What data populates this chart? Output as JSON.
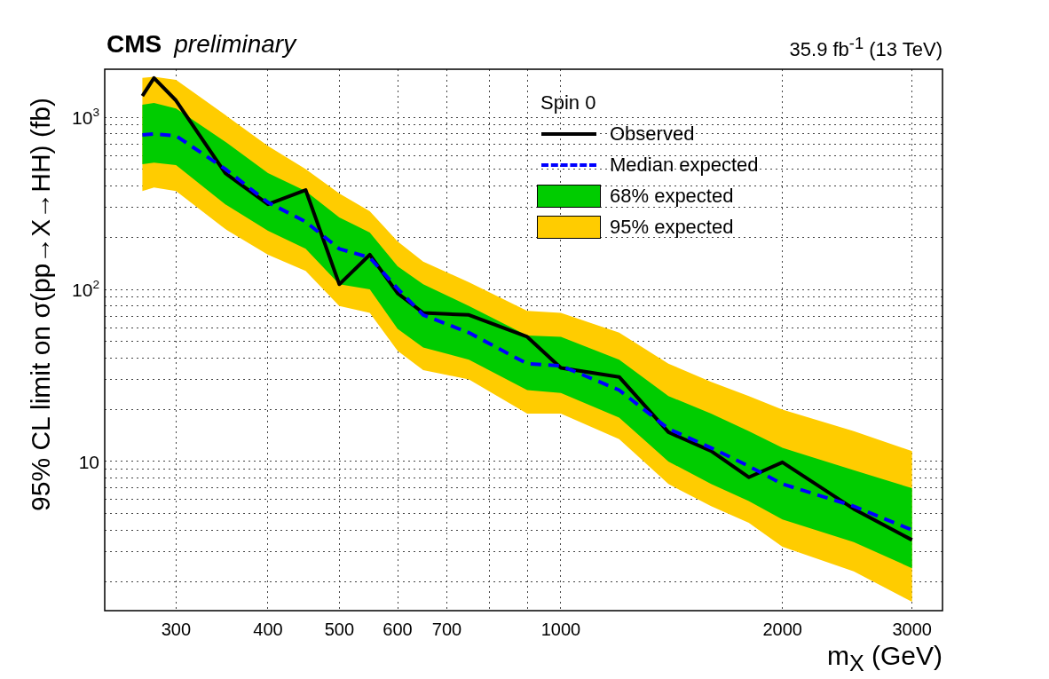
{
  "chart_data": {
    "type": "line",
    "title": "CMS",
    "subtitle": "preliminary",
    "xlabel": "m$_{X}$ (GeV)",
    "ylabel": "95% CL limit on σ(pp→X→HH) (fb)",
    "legend_title": "Spin 0",
    "annotations": [
      "35.9 fb$^{-1}$ (13 TeV)"
    ],
    "x": [
      270,
      280,
      300,
      350,
      400,
      450,
      500,
      550,
      600,
      650,
      750,
      900,
      1000,
      1200,
      1400,
      1600,
      1800,
      2000,
      2500,
      3000
    ],
    "series": [
      {
        "name": "95% expected",
        "type": "line",
        "color": "#ffcc00",
        "values": [
          null,
          null,
          null,
          null,
          null,
          null,
          null,
          null,
          null,
          null,
          null,
          null,
          null,
          null,
          null,
          null,
          null,
          null,
          null,
          null
        ],
        "lower": [
          373,
          390,
          373,
          224,
          159,
          128,
          80,
          73,
          44,
          34,
          30,
          19,
          19,
          13.5,
          7.4,
          5.5,
          4.4,
          3.2,
          2.3,
          1.53
        ],
        "upper": [
          1690,
          1720,
          1650,
          1030,
          680,
          500,
          360,
          284,
          190,
          145,
          110,
          75,
          73,
          56,
          37,
          29,
          24,
          20,
          15,
          11.5
        ]
      },
      {
        "name": "68% expected",
        "type": "line",
        "color": "#00cc00",
        "values": [
          null,
          null,
          null,
          null,
          null,
          null,
          null,
          null,
          null,
          null,
          null,
          null,
          null,
          null,
          null,
          null,
          null,
          null,
          null,
          null
        ],
        "lower": [
          533,
          545,
          527,
          312,
          219,
          172,
          107,
          100,
          59,
          46,
          39,
          26,
          25,
          18,
          10,
          7.4,
          5.9,
          4.6,
          3.4,
          2.4
        ],
        "upper": [
          1180,
          1210,
          1125,
          720,
          473,
          373,
          262,
          214,
          136,
          107,
          80,
          54,
          53,
          39,
          24,
          19,
          15,
          12,
          8.9,
          7
        ]
      },
      {
        "name": "Median expected",
        "type": "line",
        "color": "#0000ff",
        "line_style": "dashed",
        "values": [
          790,
          800,
          780,
          500,
          320,
          247,
          172,
          153,
          101,
          71,
          56,
          37,
          36,
          26,
          15.5,
          12,
          9.4,
          7.4,
          5.5,
          4.0
        ]
      },
      {
        "name": "Observed",
        "type": "line",
        "color": "#000000",
        "line_style": "solid",
        "values": [
          1330,
          1690,
          1250,
          473,
          312,
          378,
          107,
          159,
          95,
          73,
          71,
          53,
          35,
          31,
          14.8,
          11.5,
          8.1,
          9.9,
          5.3,
          3.5
        ]
      }
    ],
    "log": "xy",
    "xlim": [
      240,
      3300
    ],
    "xticks": [
      300,
      400,
      500,
      600,
      700,
      {
        "value": 800,
        "label": null
      },
      {
        "value": 900,
        "label": null
      },
      1000,
      2000,
      3000
    ],
    "ylim": [
      1.36,
      1900
    ],
    "yticks": [
      {
        "value": 2,
        "label": null
      },
      {
        "value": 3,
        "label": null
      },
      {
        "value": 4,
        "label": null
      },
      {
        "value": 5,
        "label": null
      },
      {
        "value": 6,
        "label": null
      },
      {
        "value": 7,
        "label": null
      },
      {
        "value": 8,
        "label": null
      },
      {
        "value": 9,
        "label": null
      },
      10,
      {
        "value": 20,
        "label": null
      },
      {
        "value": 30,
        "label": null
      },
      {
        "value": 40,
        "label": null
      },
      {
        "value": 50,
        "label": null
      },
      {
        "value": 60,
        "label": null
      },
      {
        "value": 70,
        "label": null
      },
      {
        "value": 80,
        "label": null
      },
      {
        "value": 90,
        "label": null
      },
      {
        "value": 100,
        "label": "10$^{2}$"
      },
      {
        "value": 200,
        "label": null
      },
      {
        "value": 300,
        "label": null
      },
      {
        "value": 400,
        "label": null
      },
      {
        "value": 500,
        "label": null
      },
      {
        "value": 600,
        "label": null
      },
      {
        "value": 700,
        "label": null
      },
      {
        "value": 800,
        "label": null
      },
      {
        "value": 900,
        "label": null
      },
      {
        "value": 1000,
        "label": "10$^{3}$"
      }
    ],
    "grid": true,
    "legend": "top right",
    "marker": "none"
  }
}
